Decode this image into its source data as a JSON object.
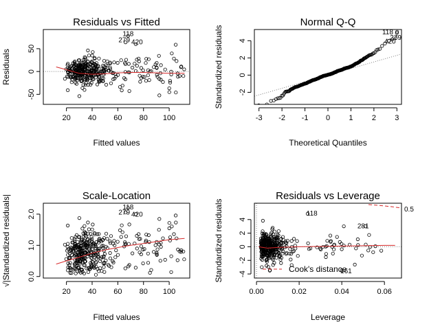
{
  "chart_data": [
    {
      "type": "scatter",
      "title": "Residuals vs Fitted",
      "xlabel": "Fitted values",
      "ylabel": "Residuals",
      "xlim": [
        2,
        116
      ],
      "ylim": [
        -72,
        92
      ],
      "xticks": [
        20,
        40,
        60,
        80,
        100
      ],
      "yticks": [
        -50,
        0,
        50
      ],
      "annotations": [
        {
          "text": "118",
          "x": 68,
          "y": 82
        },
        {
          "text": "279",
          "x": 65,
          "y": 69
        },
        {
          "text": "420",
          "x": 75,
          "y": 64
        }
      ],
      "reference_line": {
        "type": "hline",
        "y": 0,
        "style": "dotted",
        "color": "#808080"
      },
      "smoother": {
        "color": "#d62728",
        "x": [
          12,
          20,
          30,
          40,
          50,
          60,
          70,
          80,
          90,
          100,
          112
        ],
        "y": [
          10,
          4,
          -4,
          -6,
          -5,
          -3,
          -2,
          -2,
          -3,
          -4,
          -4
        ]
      },
      "n_points": 380
    },
    {
      "type": "scatter",
      "title": "Normal Q-Q",
      "xlabel": "Theoretical Quantiles",
      "ylabel": "Standardized residuals",
      "xlim": [
        -3.2,
        3.2
      ],
      "ylim": [
        -3.4,
        5.3
      ],
      "xticks": [
        -3,
        -2,
        -1,
        0,
        1,
        2,
        3
      ],
      "yticks": [
        -2,
        0,
        2,
        4
      ],
      "annotations": [
        {
          "text": "118",
          "x": 2.6,
          "y": 5.0
        },
        {
          "text": "279",
          "x": 2.95,
          "y": 4.35
        },
        {
          "text": "420",
          "x": 2.7,
          "y": 3.9
        }
      ],
      "reference_line": {
        "type": "line",
        "x": [
          -3.2,
          3.2
        ],
        "y": [
          -2.45,
          2.45
        ],
        "style": "dotted",
        "color": "#808080"
      },
      "n_points": 380
    },
    {
      "type": "scatter",
      "title": "Scale-Location",
      "xlabel": "Fitted values",
      "ylabel": "√|Standardized residuals|",
      "xlim": [
        2,
        116
      ],
      "ylim": [
        -0.05,
        2.35
      ],
      "xticks": [
        20,
        40,
        60,
        80,
        100
      ],
      "yticks": [
        0.0,
        1.0,
        2.0
      ],
      "yticklabels": [
        "0.0",
        "1.0",
        "2.0"
      ],
      "annotations": [
        {
          "text": "118",
          "x": 68,
          "y": 2.22
        },
        {
          "text": "279",
          "x": 65,
          "y": 2.05
        },
        {
          "text": "420",
          "x": 75,
          "y": 1.99
        }
      ],
      "smoother": {
        "color": "#d62728",
        "x": [
          12,
          20,
          30,
          40,
          50,
          60,
          70,
          80,
          90,
          100,
          112
        ],
        "y": [
          0.4,
          0.5,
          0.62,
          0.75,
          0.85,
          0.93,
          1.0,
          1.06,
          1.12,
          1.18,
          1.22
        ]
      },
      "n_points": 380
    },
    {
      "type": "scatter",
      "title": "Residuals vs Leverage",
      "xlabel": "Leverage",
      "ylabel": "Standardized residuals",
      "xlim": [
        -0.001,
        0.068
      ],
      "ylim": [
        -4.6,
        6.4
      ],
      "xticks": [
        0.0,
        0.02,
        0.04,
        0.06
      ],
      "xticklabels": [
        "0.00",
        "0.02",
        "0.04",
        "0.06"
      ],
      "yticks": [
        -4,
        -2,
        0,
        2,
        4
      ],
      "annotations": [
        {
          "text": "118",
          "x": 0.026,
          "y": 4.9
        },
        {
          "text": "281",
          "x": 0.05,
          "y": 3.0
        },
        {
          "text": "161",
          "x": 0.042,
          "y": -3.6
        }
      ],
      "legend": {
        "text": "Cook's distance",
        "position": "bottom-left",
        "style": "dashed",
        "color": "#d62728"
      },
      "cooks_contour_label": "0.5",
      "smoother": {
        "color": "#d62728",
        "x": [
          0.001,
          0.005,
          0.01,
          0.02,
          0.03,
          0.04,
          0.05,
          0.06,
          0.065
        ],
        "y": [
          0.0,
          -0.2,
          -0.1,
          0.0,
          0.05,
          0.1,
          0.15,
          0.2,
          0.2
        ]
      },
      "n_points": 380
    }
  ]
}
